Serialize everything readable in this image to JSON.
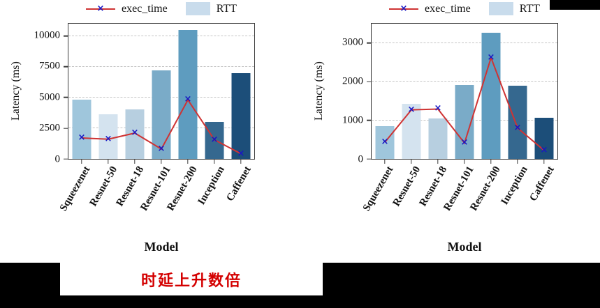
{
  "icons": {
    "x_marker": "×"
  },
  "figure": {
    "caption": "时延上升数倍"
  },
  "chart_data": [
    {
      "type": "bar",
      "title": "",
      "categories": [
        "Squeezenet",
        "Resnet-50",
        "Resnet-18",
        "Resnet-101",
        "Resnet-200",
        "Inception",
        "Caffenet"
      ],
      "series": [
        {
          "name": "exec_time",
          "type": "line",
          "color": "#cf3333",
          "marker": "x",
          "marker_color": "#1717c4",
          "values": [
            1700,
            1600,
            2100,
            800,
            4800,
            1550,
            420
          ]
        },
        {
          "name": "RTT",
          "type": "bar",
          "colors": [
            "#9fc6dc",
            "#d4e3ef",
            "#b7cfe0",
            "#7aabc8",
            "#5e9cbf",
            "#35688f",
            "#1c4e79"
          ],
          "values": [
            4800,
            3650,
            4050,
            7200,
            10500,
            3000,
            6950
          ]
        }
      ],
      "xlabel": "Model",
      "ylabel": "Latency (ms)",
      "ylim": [
        0,
        11000
      ],
      "yticks": [
        0,
        2500,
        5000,
        7500,
        10000
      ],
      "grid": true,
      "legend_position": "top"
    },
    {
      "type": "bar",
      "title": "",
      "categories": [
        "Squeezenet",
        "Resnet-50",
        "Resnet-18",
        "Resnet-101",
        "Resnet-200",
        "Inception",
        "Caffenet"
      ],
      "series": [
        {
          "name": "exec_time",
          "type": "line",
          "color": "#cf3333",
          "marker": "x",
          "marker_color": "#1717c4",
          "values": [
            430,
            1270,
            1290,
            410,
            2620,
            800,
            220
          ]
        },
        {
          "name": "RTT",
          "type": "bar",
          "colors": [
            "#9fc6dc",
            "#d4e3ef",
            "#b7cfe0",
            "#7aabc8",
            "#5e9cbf",
            "#35688f",
            "#1c4e79"
          ],
          "values": [
            850,
            1430,
            1040,
            1910,
            3270,
            1890,
            1070
          ]
        }
      ],
      "xlabel": "Model",
      "ylabel": "Latency (ms)",
      "ylim": [
        0,
        3500
      ],
      "yticks": [
        0,
        1000,
        2000,
        3000
      ],
      "grid": true,
      "legend_position": "top"
    }
  ]
}
